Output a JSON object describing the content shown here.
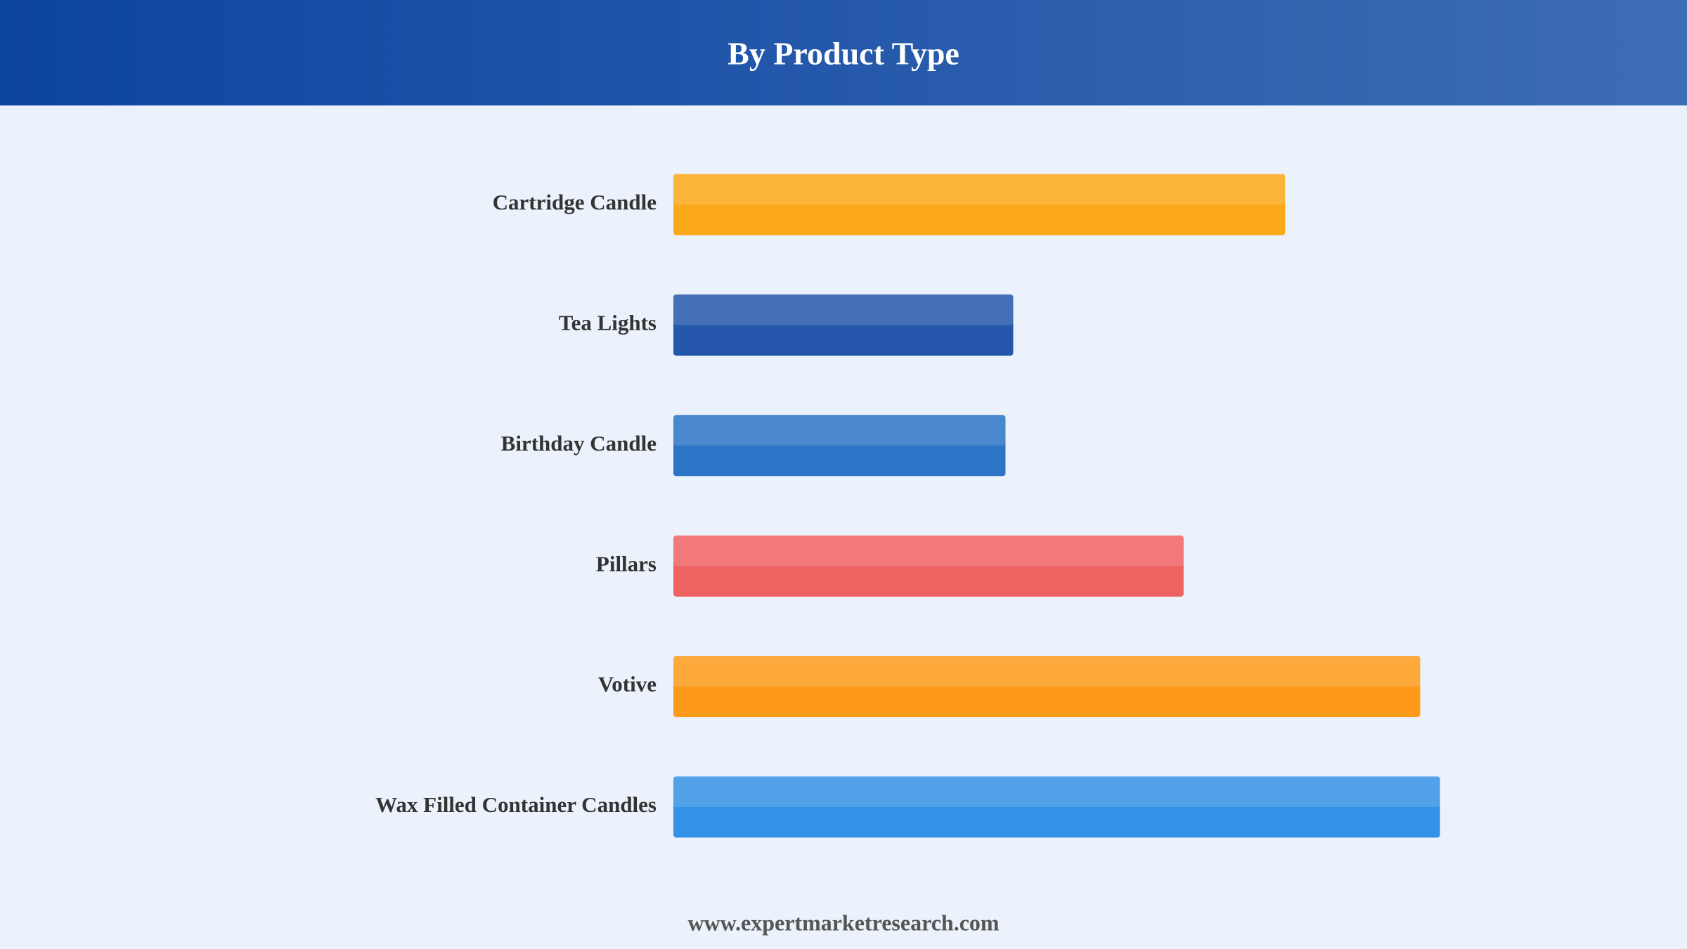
{
  "chart_data": {
    "type": "bar",
    "orientation": "horizontal",
    "title": "By Product Type",
    "categories": [
      "Cartridge Candle",
      "Tea Lights",
      "Birthday Candle",
      "Pillars",
      "Votive",
      "Wax Filled Container Candles"
    ],
    "values": [
      71.1,
      39.5,
      38.6,
      59.3,
      86.8,
      89.1
    ],
    "colors": [
      "#fca919",
      "#2457ab",
      "#2b74c6",
      "#ef6262",
      "#fd9a1a",
      "#3492e6"
    ],
    "xlim": [
      0,
      100
    ],
    "footer": "www.expertmarketresearch.com"
  }
}
